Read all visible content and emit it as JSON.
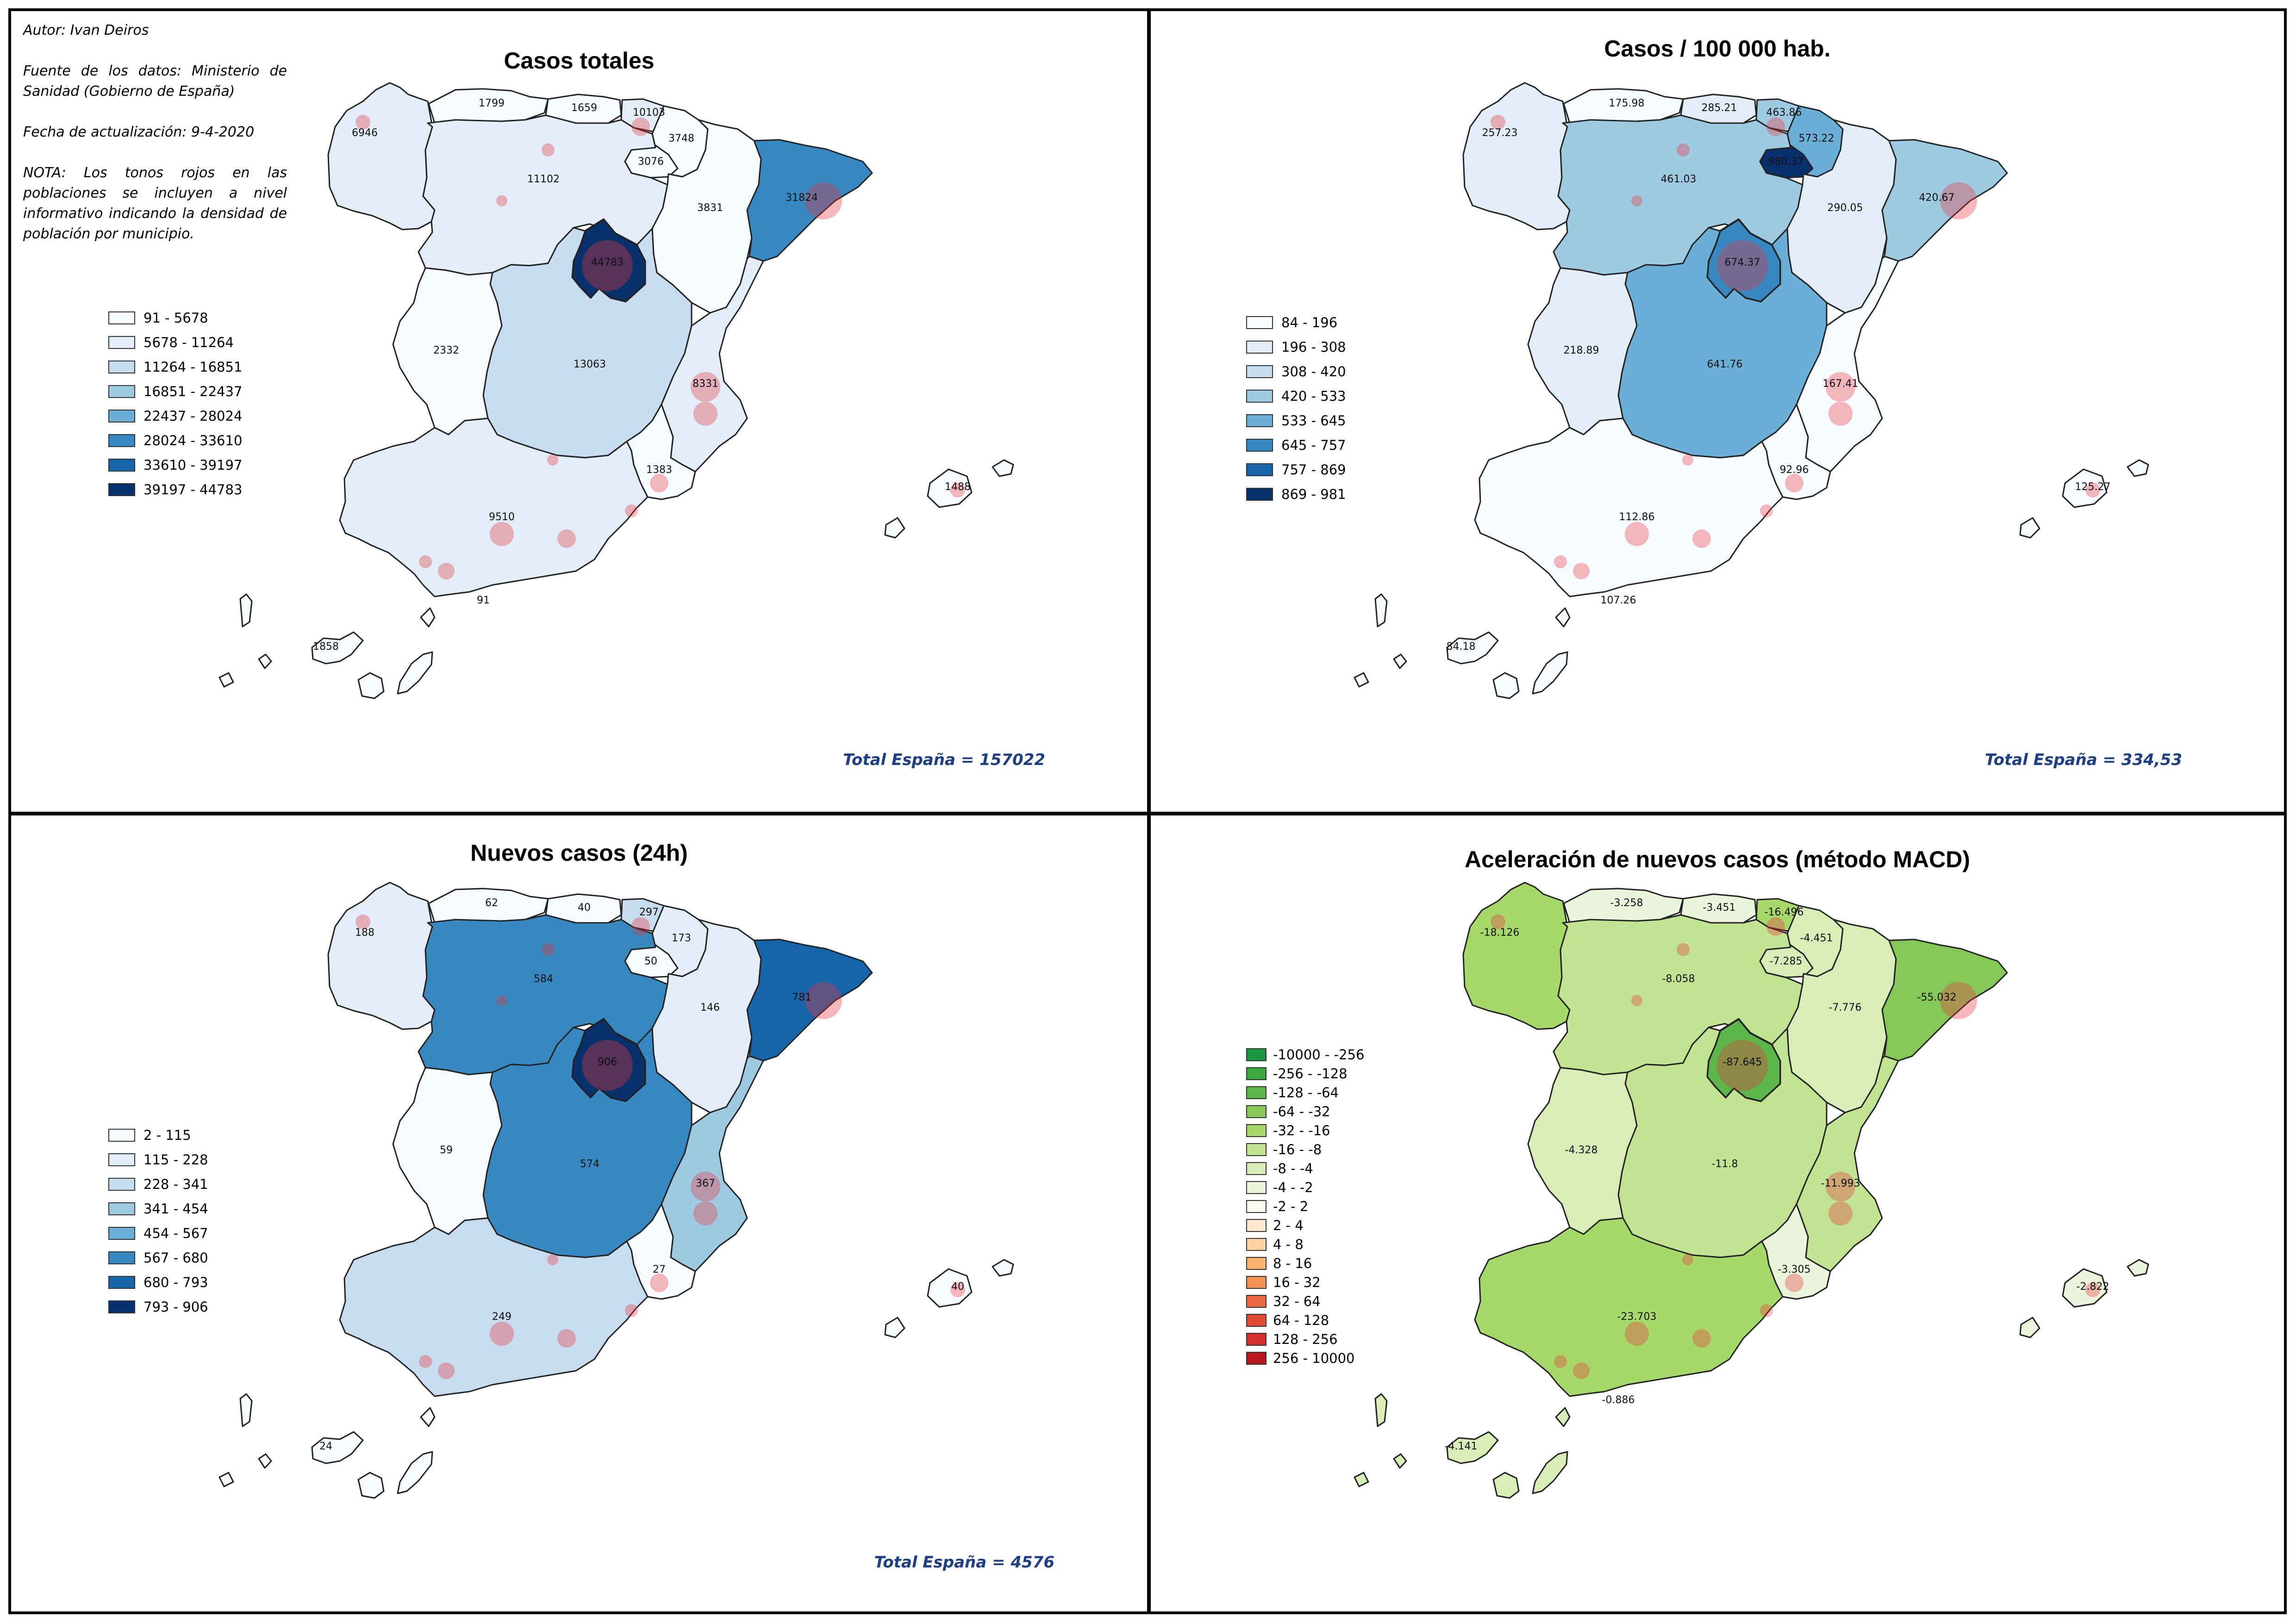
{
  "notes": {
    "author": "Autor: Ivan Deiros",
    "source": "Fuente de los datos: Ministerio de Sanidad (Gobierno de España)",
    "date": "Fecha de actualización: 9-4-2020",
    "note": "NOTA: Los tonos rojos en las poblaciones se incluyen a nivel informativo indicando la densidad de población por municipio."
  },
  "panels": [
    {
      "title": "Casos totales",
      "total": "Total España = 157022",
      "legend": [
        {
          "label": "91 - 5678",
          "color": "#f7fbff"
        },
        {
          "label": "5678 - 11264",
          "color": "#e2edf8"
        },
        {
          "label": "11264 - 16851",
          "color": "#c8dcef"
        },
        {
          "label": "16851 - 22437",
          "color": "#9ecae1"
        },
        {
          "label": "22437 - 28024",
          "color": "#6baed6"
        },
        {
          "label": "28024 - 33610",
          "color": "#3787c0"
        },
        {
          "label": "33610 - 39197",
          "color": "#1764ab"
        },
        {
          "label": "39197 - 44783",
          "color": "#08306b"
        }
      ],
      "regions": {
        "galicia": {
          "label": "6946",
          "color": "#e2edf8"
        },
        "asturias": {
          "label": "1799",
          "color": "#f7fbff"
        },
        "cantabria": {
          "label": "1659",
          "color": "#f7fbff"
        },
        "pvasco": {
          "label": "10103",
          "color": "#e2edf8"
        },
        "navarra": {
          "label": "3748",
          "color": "#f7fbff"
        },
        "rioja": {
          "label": "3076",
          "color": "#f7fbff"
        },
        "cyl": {
          "label": "11102",
          "color": "#e2edf8"
        },
        "aragon": {
          "label": "3831",
          "color": "#f7fbff"
        },
        "catalunya": {
          "label": "31824",
          "color": "#3787c0"
        },
        "madrid": {
          "label": "44783",
          "color": "#08306b"
        },
        "clm": {
          "label": "13063",
          "color": "#c8dcef"
        },
        "extremadura": {
          "label": "2332",
          "color": "#f7fbff"
        },
        "valencia": {
          "label": "8331",
          "color": "#e2edf8"
        },
        "murcia": {
          "label": "1383",
          "color": "#f7fbff"
        },
        "andalucia": {
          "label": "9510",
          "color": "#e2edf8"
        },
        "baleares": {
          "label": "1488",
          "color": "#f7fbff"
        },
        "canarias": {
          "label": "1858",
          "color": "#f7fbff"
        },
        "ceuta": {
          "label": "91",
          "color": "#f7fbff"
        }
      }
    },
    {
      "title": "Casos / 100 000 hab.",
      "total": "Total España = 334,53",
      "legend": [
        {
          "label": "84 - 196",
          "color": "#f7fbff"
        },
        {
          "label": "196 - 308",
          "color": "#e2edf8"
        },
        {
          "label": "308 - 420",
          "color": "#c8dcef"
        },
        {
          "label": "420 - 533",
          "color": "#9ecae1"
        },
        {
          "label": "533 - 645",
          "color": "#6baed6"
        },
        {
          "label": "645 - 757",
          "color": "#3787c0"
        },
        {
          "label": "757 - 869",
          "color": "#1764ab"
        },
        {
          "label": "869 - 981",
          "color": "#08306b"
        }
      ],
      "regions": {
        "galicia": {
          "label": "257.23",
          "color": "#e2edf8"
        },
        "asturias": {
          "label": "175.98",
          "color": "#f7fbff"
        },
        "cantabria": {
          "label": "285.21",
          "color": "#e2edf8"
        },
        "pvasco": {
          "label": "463.86",
          "color": "#9ecae1"
        },
        "navarra": {
          "label": "573.22",
          "color": "#6baed6"
        },
        "rioja": {
          "label": "980.37",
          "color": "#08306b"
        },
        "cyl": {
          "label": "461.03",
          "color": "#9ecae1"
        },
        "aragon": {
          "label": "290.05",
          "color": "#e2edf8"
        },
        "catalunya": {
          "label": "420.67",
          "color": "#9ecae1"
        },
        "madrid": {
          "label": "674.37",
          "color": "#3787c0"
        },
        "clm": {
          "label": "641.76",
          "color": "#6baed6"
        },
        "extremadura": {
          "label": "218.89",
          "color": "#e2edf8"
        },
        "valencia": {
          "label": "167.41",
          "color": "#f7fbff"
        },
        "murcia": {
          "label": "92.96",
          "color": "#f7fbff"
        },
        "andalucia": {
          "label": "112.86",
          "color": "#f7fbff"
        },
        "baleares": {
          "label": "125.27",
          "color": "#f7fbff"
        },
        "canarias": {
          "label": "84.18",
          "color": "#f7fbff"
        },
        "ceuta": {
          "label": "107.26",
          "color": "#f7fbff"
        }
      }
    },
    {
      "title": "Nuevos casos (24h)",
      "total": "Total España = 4576",
      "legend": [
        {
          "label": "2 - 115",
          "color": "#f7fbff"
        },
        {
          "label": "115 - 228",
          "color": "#e2edf8"
        },
        {
          "label": "228 - 341",
          "color": "#c8dcef"
        },
        {
          "label": "341 - 454",
          "color": "#9ecae1"
        },
        {
          "label": "454 - 567",
          "color": "#6baed6"
        },
        {
          "label": "567 - 680",
          "color": "#3787c0"
        },
        {
          "label": "680 - 793",
          "color": "#1764ab"
        },
        {
          "label": "793 - 906",
          "color": "#08306b"
        }
      ],
      "regions": {
        "galicia": {
          "label": "188",
          "color": "#e2edf8"
        },
        "asturias": {
          "label": "62",
          "color": "#f7fbff"
        },
        "cantabria": {
          "label": "40",
          "color": "#f7fbff"
        },
        "pvasco": {
          "label": "297",
          "color": "#c8dcef"
        },
        "navarra": {
          "label": "173",
          "color": "#e2edf8"
        },
        "rioja": {
          "label": "50",
          "color": "#f7fbff"
        },
        "cyl": {
          "label": "584",
          "color": "#3787c0"
        },
        "aragon": {
          "label": "146",
          "color": "#e2edf8"
        },
        "catalunya": {
          "label": "781",
          "color": "#1764ab"
        },
        "madrid": {
          "label": "906",
          "color": "#08306b"
        },
        "clm": {
          "label": "574",
          "color": "#3787c0"
        },
        "extremadura": {
          "label": "59",
          "color": "#f7fbff"
        },
        "valencia": {
          "label": "367",
          "color": "#9ecae1"
        },
        "murcia": {
          "label": "27",
          "color": "#f7fbff"
        },
        "andalucia": {
          "label": "249",
          "color": "#c8dcef"
        },
        "baleares": {
          "label": "40",
          "color": "#f7fbff"
        },
        "canarias": {
          "label": "24",
          "color": "#f7fbff"
        },
        "ceuta": {
          "label": "",
          "color": "#f7fbff"
        }
      }
    },
    {
      "title": "Aceleración de nuevos casos (método MACD)",
      "total": "",
      "legend": [
        {
          "label": "-10000 - -256",
          "color": "#1a9641"
        },
        {
          "label": "-256 - -128",
          "color": "#3aa63e"
        },
        {
          "label": "-128 - -64",
          "color": "#5cb64a"
        },
        {
          "label": "-64 - -32",
          "color": "#86c75a"
        },
        {
          "label": "-32 - -16",
          "color": "#a6d96a"
        },
        {
          "label": "-16 - -8",
          "color": "#c1e392"
        },
        {
          "label": "-8 - -4",
          "color": "#d9edb8"
        },
        {
          "label": "-4 - -2",
          "color": "#ecf5dc"
        },
        {
          "label": "-2 - 2",
          "color": "#fbfbf0"
        },
        {
          "label": "2 - 4",
          "color": "#fde9d2"
        },
        {
          "label": "4 - 8",
          "color": "#fdd2a3"
        },
        {
          "label": "8 - 16",
          "color": "#fdb46d"
        },
        {
          "label": "16 - 32",
          "color": "#f79152"
        },
        {
          "label": "32 - 64",
          "color": "#ea6a3f"
        },
        {
          "label": "64 - 128",
          "color": "#df4a33"
        },
        {
          "label": "128 - 256",
          "color": "#d2302a"
        },
        {
          "label": "256 - 10000",
          "color": "#b8171f"
        }
      ],
      "regions": {
        "galicia": {
          "label": "-18.126",
          "color": "#a6d96a"
        },
        "asturias": {
          "label": "-3.258",
          "color": "#ecf5dc"
        },
        "cantabria": {
          "label": "-3.451",
          "color": "#ecf5dc"
        },
        "pvasco": {
          "label": "-16.496",
          "color": "#a6d96a"
        },
        "navarra": {
          "label": "-4.451",
          "color": "#d9edb8"
        },
        "rioja": {
          "label": "-7.285",
          "color": "#d9edb8"
        },
        "cyl": {
          "label": "-8.058",
          "color": "#c1e392"
        },
        "aragon": {
          "label": "-7.776",
          "color": "#d9edb8"
        },
        "catalunya": {
          "label": "-55.032",
          "color": "#86c75a"
        },
        "madrid": {
          "label": "-87.645",
          "color": "#5cb64a"
        },
        "clm": {
          "label": "-11.8",
          "color": "#c1e392"
        },
        "extremadura": {
          "label": "-4.328",
          "color": "#d9edb8"
        },
        "valencia": {
          "label": "-11.993",
          "color": "#c1e392"
        },
        "murcia": {
          "label": "-3.305",
          "color": "#ecf5dc"
        },
        "andalucia": {
          "label": "-23.703",
          "color": "#a6d96a"
        },
        "baleares": {
          "label": "-2.822",
          "color": "#ecf5dc"
        },
        "canarias": {
          "label": "-4.141",
          "color": "#d9edb8"
        },
        "ceuta": {
          "label": "-0.886",
          "color": "#fbfbf0"
        }
      }
    }
  ]
}
